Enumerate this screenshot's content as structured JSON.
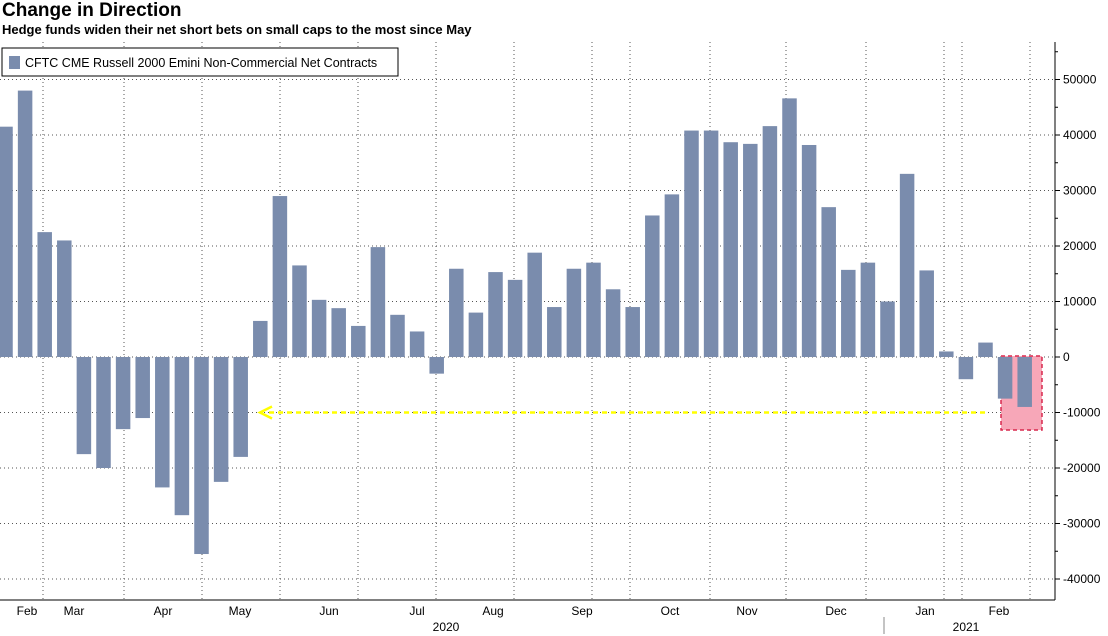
{
  "header": {
    "title": "Change in Direction",
    "subtitle": "Hedge funds widen their net short bets on small caps to the most since May"
  },
  "chart_data": {
    "type": "bar",
    "title": "Change in Direction",
    "subtitle": "Hedge funds widen their net short bets on small caps to the most since May",
    "legend": "CFTC CME Russell 2000 Emini Non-Commercial Net Contracts",
    "legend_position": "top-left",
    "series_color": "#7a8cad",
    "ylim": [
      -45000,
      56000
    ],
    "yticks": [
      50000,
      40000,
      30000,
      20000,
      10000,
      0,
      -10000,
      -20000,
      -30000,
      -40000
    ],
    "ytick_labels": [
      "50000",
      "40000",
      "30000",
      "20000",
      "10000",
      "0",
      "-10000",
      "-20000",
      "-30000",
      "-40000"
    ],
    "y_axis_side": "right",
    "x_month_labels": [
      "Feb",
      "Mar",
      "Apr",
      "May",
      "Jun",
      "Jul",
      "Aug",
      "Sep",
      "Oct",
      "Nov",
      "Dec",
      "Jan",
      "Feb"
    ],
    "x_year_labels": [
      "2020",
      "2021"
    ],
    "grid": true,
    "values": [
      41500,
      48000,
      22500,
      21000,
      -17500,
      -20000,
      -13000,
      -11000,
      -23500,
      -28500,
      -35500,
      -22500,
      -18000,
      6500,
      29000,
      16500,
      10300,
      8800,
      5600,
      19800,
      7600,
      4600,
      -3000,
      15900,
      8000,
      15300,
      13900,
      18800,
      9000,
      15900,
      17000,
      12200,
      9000,
      25500,
      29300,
      40800,
      40800,
      38700,
      38400,
      41600,
      46600,
      38200,
      27000,
      15700,
      17000,
      10000,
      33000,
      15600,
      1000,
      -4000,
      2600,
      -7500,
      -9000
    ],
    "annotations": [
      {
        "type": "dashed-arrow",
        "color": "#ffff00",
        "from_value": -10000,
        "description": "level comparison back to May"
      },
      {
        "type": "highlight-box",
        "color": "#f06080",
        "covers": "last two weeks"
      }
    ]
  }
}
